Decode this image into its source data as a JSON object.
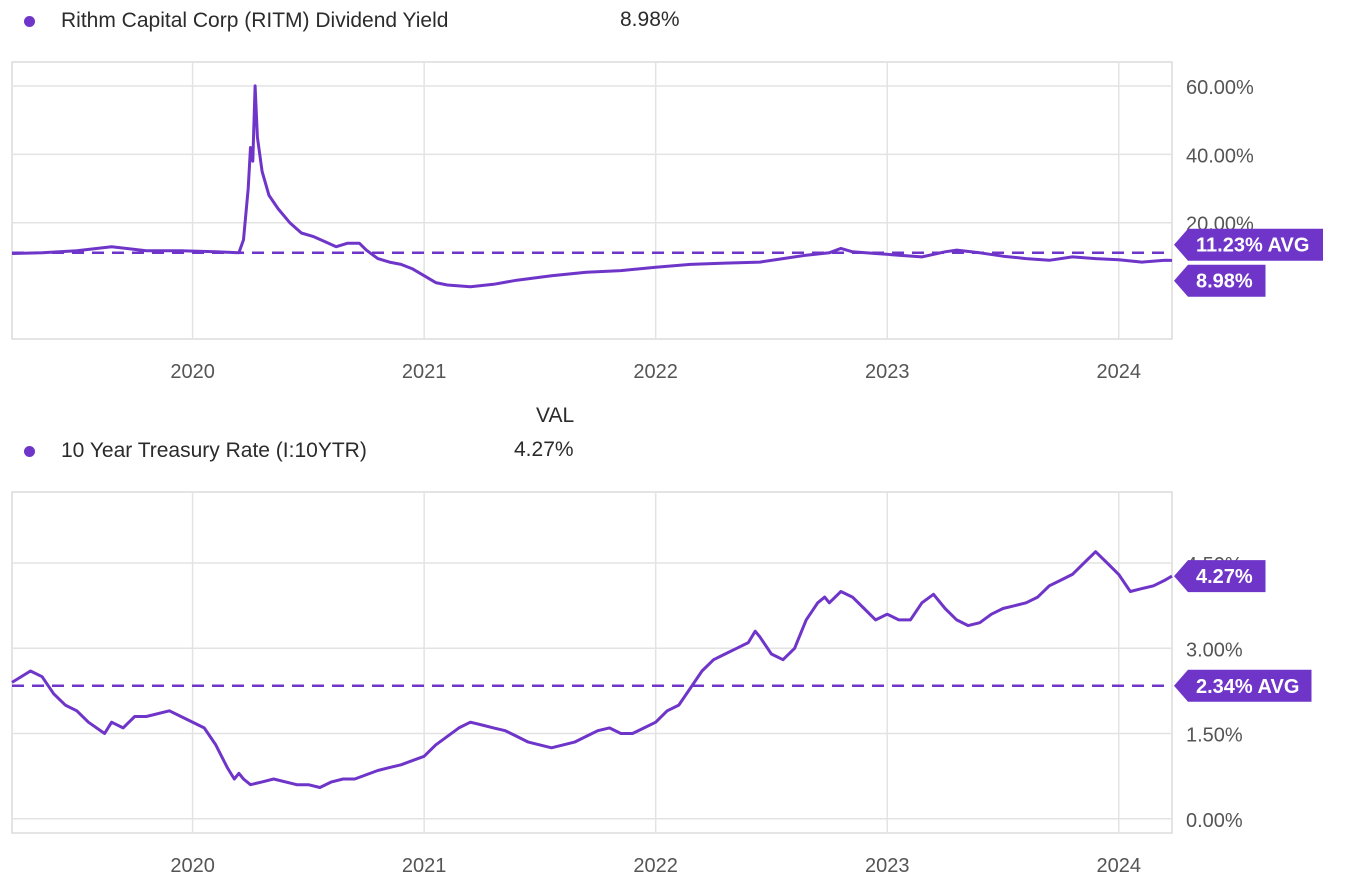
{
  "column_header": "VAL",
  "charts": [
    {
      "legend": {
        "label": "Rithm Capital Corp (RITM) Dividend Yield",
        "value": "8.98%"
      },
      "x_ticks": [
        "2020",
        "2021",
        "2022",
        "2023",
        "2024"
      ],
      "y_ticks": [
        "20.00%",
        "40.00%",
        "60.00%"
      ],
      "avg_tag": "11.23% AVG",
      "last_tag": "8.98%"
    },
    {
      "legend": {
        "label": "10 Year Treasury Rate (I:10YTR)",
        "value": "4.27%"
      },
      "x_ticks": [
        "2020",
        "2021",
        "2022",
        "2023",
        "2024"
      ],
      "y_ticks": [
        "0.00%",
        "1.50%",
        "3.00%",
        "4.50%"
      ],
      "avg_tag": "2.34% AVG",
      "last_tag": "4.27%"
    }
  ],
  "colors": {
    "series": "#6f35c9",
    "grid": "#e3e3e3",
    "axis_text": "#555555"
  },
  "chart_data": [
    {
      "type": "line",
      "title": "Rithm Capital Corp (RITM) Dividend Yield",
      "xlabel": "",
      "ylabel": "",
      "ylim": [
        -14,
        67
      ],
      "xlim": [
        2019.22,
        2024.23
      ],
      "grid": true,
      "y_ticks": [
        20,
        40,
        60
      ],
      "avg": 11.23,
      "series": [
        {
          "name": "Rithm Capital Corp (RITM) Dividend Yield",
          "x": [
            2019.22,
            2019.35,
            2019.5,
            2019.65,
            2019.8,
            2019.95,
            2020.1,
            2020.2,
            2020.22,
            2020.24,
            2020.25,
            2020.26,
            2020.27,
            2020.28,
            2020.3,
            2020.33,
            2020.37,
            2020.42,
            2020.47,
            2020.52,
            2020.57,
            2020.62,
            2020.67,
            2020.72,
            2020.75,
            2020.8,
            2020.85,
            2020.9,
            2020.95,
            2021.0,
            2021.05,
            2021.1,
            2021.2,
            2021.3,
            2021.4,
            2021.55,
            2021.7,
            2021.85,
            2022.0,
            2022.15,
            2022.3,
            2022.45,
            2022.55,
            2022.65,
            2022.75,
            2022.8,
            2022.85,
            2022.95,
            2023.05,
            2023.15,
            2023.25,
            2023.3,
            2023.4,
            2023.5,
            2023.6,
            2023.7,
            2023.8,
            2023.9,
            2024.0,
            2024.1,
            2024.2,
            2024.23
          ],
          "values": [
            11.0,
            11.2,
            11.8,
            13.0,
            11.8,
            11.8,
            11.5,
            11.2,
            15.0,
            30.0,
            42.0,
            38.0,
            60.0,
            45.0,
            35.0,
            28.0,
            24.0,
            20.0,
            17.0,
            16.0,
            14.5,
            13.0,
            14.0,
            14.0,
            12.0,
            9.5,
            8.5,
            7.8,
            6.5,
            4.5,
            2.5,
            1.8,
            1.3,
            2.0,
            3.2,
            4.5,
            5.5,
            6.0,
            7.0,
            7.8,
            8.2,
            8.5,
            9.5,
            10.5,
            11.2,
            12.5,
            11.5,
            11.0,
            10.5,
            10.0,
            11.5,
            12.0,
            11.2,
            10.2,
            9.5,
            9.0,
            10.0,
            9.5,
            9.2,
            8.5,
            9.0,
            8.98
          ]
        }
      ]
    },
    {
      "type": "line",
      "title": "10 Year Treasury Rate (I:10YTR)",
      "xlabel": "",
      "ylabel": "",
      "ylim": [
        -0.25,
        5.75
      ],
      "xlim": [
        2019.22,
        2024.23
      ],
      "grid": true,
      "y_ticks": [
        0,
        1.5,
        3,
        4.5
      ],
      "avg": 2.34,
      "series": [
        {
          "name": "10 Year Treasury Rate (I:10YTR)",
          "x": [
            2019.22,
            2019.3,
            2019.35,
            2019.4,
            2019.45,
            2019.5,
            2019.55,
            2019.62,
            2019.65,
            2019.7,
            2019.75,
            2019.8,
            2019.9,
            2019.95,
            2020.05,
            2020.1,
            2020.15,
            2020.18,
            2020.2,
            2020.22,
            2020.25,
            2020.3,
            2020.35,
            2020.45,
            2020.5,
            2020.55,
            2020.6,
            2020.65,
            2020.7,
            2020.8,
            2020.85,
            2020.9,
            2021.0,
            2021.05,
            2021.1,
            2021.15,
            2021.2,
            2021.25,
            2021.3,
            2021.35,
            2021.4,
            2021.45,
            2021.5,
            2021.55,
            2021.6,
            2021.65,
            2021.7,
            2021.75,
            2021.8,
            2021.85,
            2021.9,
            2021.95,
            2022.0,
            2022.05,
            2022.1,
            2022.15,
            2022.2,
            2022.25,
            2022.3,
            2022.35,
            2022.4,
            2022.43,
            2022.45,
            2022.5,
            2022.55,
            2022.6,
            2022.65,
            2022.7,
            2022.73,
            2022.75,
            2022.8,
            2022.85,
            2022.9,
            2022.95,
            2023.0,
            2023.05,
            2023.1,
            2023.15,
            2023.2,
            2023.25,
            2023.3,
            2023.35,
            2023.4,
            2023.45,
            2023.5,
            2023.55,
            2023.6,
            2023.65,
            2023.7,
            2023.75,
            2023.8,
            2023.85,
            2023.9,
            2023.95,
            2024.0,
            2024.05,
            2024.1,
            2024.15,
            2024.2,
            2024.23
          ],
          "values": [
            2.4,
            2.6,
            2.5,
            2.2,
            2.0,
            1.9,
            1.7,
            1.5,
            1.7,
            1.6,
            1.8,
            1.8,
            1.9,
            1.8,
            1.6,
            1.3,
            0.9,
            0.7,
            0.8,
            0.7,
            0.6,
            0.65,
            0.7,
            0.6,
            0.6,
            0.55,
            0.65,
            0.7,
            0.7,
            0.85,
            0.9,
            0.95,
            1.1,
            1.3,
            1.45,
            1.6,
            1.7,
            1.65,
            1.6,
            1.55,
            1.45,
            1.35,
            1.3,
            1.25,
            1.3,
            1.35,
            1.45,
            1.55,
            1.6,
            1.5,
            1.5,
            1.6,
            1.7,
            1.9,
            2.0,
            2.3,
            2.6,
            2.8,
            2.9,
            3.0,
            3.1,
            3.3,
            3.2,
            2.9,
            2.8,
            3.0,
            3.5,
            3.8,
            3.9,
            3.8,
            4.0,
            3.9,
            3.7,
            3.5,
            3.6,
            3.5,
            3.5,
            3.8,
            3.95,
            3.7,
            3.5,
            3.4,
            3.45,
            3.6,
            3.7,
            3.75,
            3.8,
            3.9,
            4.1,
            4.2,
            4.3,
            4.5,
            4.7,
            4.5,
            4.3,
            4.0,
            4.05,
            4.1,
            4.2,
            4.27
          ]
        }
      ]
    }
  ]
}
